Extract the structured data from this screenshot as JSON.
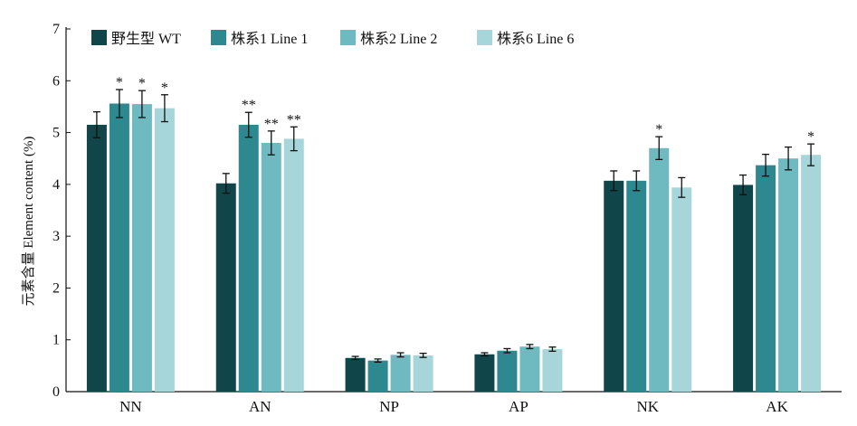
{
  "chart_data": {
    "type": "bar",
    "ylabel": "元素含量 Element content (%)",
    "ylim": [
      0,
      7
    ],
    "yticks": [
      0,
      1,
      2,
      3,
      4,
      5,
      6,
      7
    ],
    "grid": false,
    "legend_position": "top-left",
    "categories": [
      "NN",
      "AN",
      "NP",
      "AP",
      "NK",
      "AK"
    ],
    "series": [
      {
        "name": "野生型 WT",
        "color": "#10454a",
        "values": [
          5.15,
          4.02,
          0.65,
          0.72,
          4.07,
          3.99
        ],
        "errors": [
          0.25,
          0.19,
          0.03,
          0.03,
          0.19,
          0.19
        ],
        "sig": [
          "",
          "",
          "",
          "",
          "",
          ""
        ]
      },
      {
        "name": "株系1 Line 1",
        "color": "#2e8890",
        "values": [
          5.56,
          5.15,
          0.6,
          0.79,
          4.07,
          4.37
        ],
        "errors": [
          0.27,
          0.24,
          0.03,
          0.04,
          0.19,
          0.21
        ],
        "sig": [
          "*",
          "**",
          "",
          "",
          "",
          ""
        ]
      },
      {
        "name": "株系2 Line 2",
        "color": "#6fb9c0",
        "values": [
          5.55,
          4.8,
          0.71,
          0.87,
          4.7,
          4.5
        ],
        "errors": [
          0.26,
          0.23,
          0.04,
          0.04,
          0.22,
          0.22
        ],
        "sig": [
          "*",
          "**",
          "",
          "",
          "*",
          ""
        ]
      },
      {
        "name": "株系6 Line 6",
        "color": "#a7d6da",
        "values": [
          5.47,
          4.88,
          0.7,
          0.82,
          3.94,
          4.57
        ],
        "errors": [
          0.26,
          0.23,
          0.04,
          0.04,
          0.19,
          0.21
        ],
        "sig": [
          "*",
          "**",
          "",
          "",
          "",
          "*"
        ]
      }
    ]
  }
}
